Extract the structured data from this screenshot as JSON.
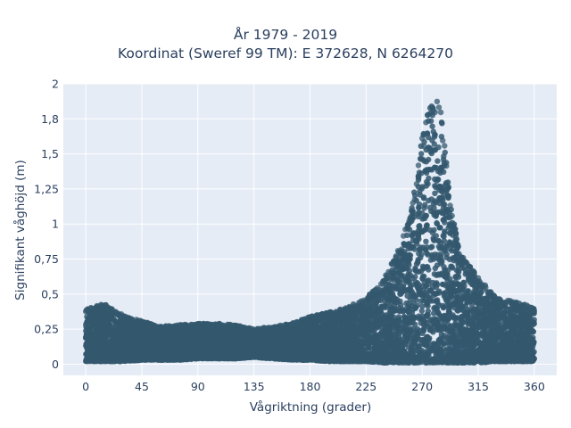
{
  "chart_data": {
    "type": "scatter",
    "title_line1": "År 1979 - 2019",
    "title_line2": "Koordinat (Sweref 99 TM): E 372628, N 6264270",
    "xlabel": "Vågriktning (grader)",
    "ylabel": "Signifikant våghöjd (m)",
    "xlim": [
      -18,
      378
    ],
    "ylim": [
      -0.08,
      2.0
    ],
    "x_ticks": [
      0,
      45,
      90,
      135,
      180,
      225,
      270,
      315,
      360
    ],
    "x_tick_labels": [
      "0",
      "45",
      "90",
      "135",
      "180",
      "225",
      "270",
      "315",
      "360"
    ],
    "y_ticks": [
      0,
      0.25,
      0.5,
      0.75,
      1,
      1.25,
      1.5,
      1.75,
      2
    ],
    "y_tick_labels": [
      "0",
      "0,25",
      "0,5",
      "0,75",
      "1",
      "1,25",
      "1,5",
      "1,8",
      "2"
    ],
    "grid": true,
    "marker_color": "#34586e",
    "background_color": "#e5ecf6",
    "envelope": {
      "x": [
        0,
        15,
        30,
        45,
        60,
        75,
        90,
        105,
        120,
        135,
        150,
        165,
        180,
        195,
        210,
        225,
        240,
        250,
        260,
        265,
        270,
        275,
        278,
        280,
        283,
        285,
        290,
        295,
        300,
        310,
        315,
        330,
        345,
        360
      ],
      "y_max": [
        0.4,
        0.43,
        0.35,
        0.31,
        0.27,
        0.28,
        0.29,
        0.29,
        0.28,
        0.25,
        0.27,
        0.29,
        0.34,
        0.37,
        0.41,
        0.47,
        0.62,
        0.8,
        1.05,
        1.3,
        1.62,
        1.82,
        1.9,
        1.93,
        1.88,
        1.8,
        1.4,
        1.05,
        0.8,
        0.68,
        0.62,
        0.47,
        0.45,
        0.4
      ],
      "y_min": [
        0.02,
        0.02,
        0.02,
        0.03,
        0.03,
        0.03,
        0.04,
        0.04,
        0.04,
        0.05,
        0.04,
        0.03,
        0.03,
        0.02,
        0.02,
        0.02,
        0.01,
        0.01,
        0.01,
        0.01,
        0.01,
        0.01,
        0.01,
        0.01,
        0.01,
        0.01,
        0.01,
        0.01,
        0.01,
        0.01,
        0.01,
        0.02,
        0.02,
        0.02
      ]
    }
  }
}
